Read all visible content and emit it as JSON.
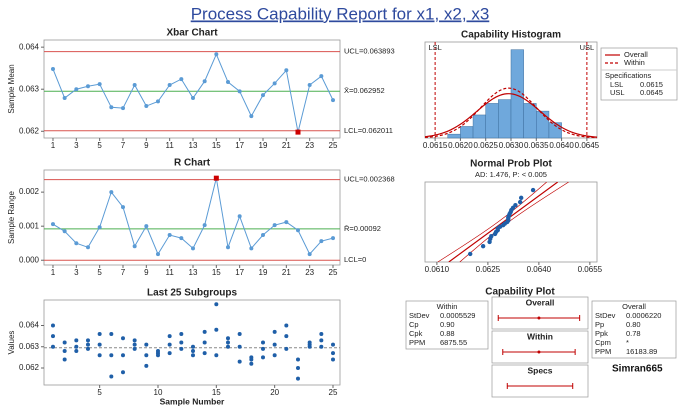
{
  "title": "Process Capability Report for x1, x2, x3",
  "credit": "Simran665",
  "chart_data": [
    {
      "type": "line",
      "title": "Xbar Chart",
      "ylabel": "Sample Mean",
      "x": [
        1,
        2,
        3,
        4,
        5,
        6,
        7,
        8,
        9,
        10,
        11,
        12,
        13,
        14,
        15,
        16,
        17,
        18,
        19,
        20,
        21,
        22,
        23,
        24,
        25
      ],
      "series": [
        {
          "color": "#5b9bd5",
          "values": [
            0.06348,
            0.06279,
            0.063,
            0.06307,
            0.06312,
            0.06257,
            0.06255,
            0.0631,
            0.0626,
            0.06271,
            0.0631,
            0.06324,
            0.06279,
            0.06319,
            0.06383,
            0.06317,
            0.06295,
            0.06236,
            0.06286,
            0.06314,
            0.06345,
            0.06198,
            0.0631,
            0.06331,
            0.06274
          ]
        }
      ],
      "highlight_color": "#cc0000",
      "limits": [
        {
          "value": 0.063893,
          "label": "UCL=0.063893",
          "color": "#d9534f"
        },
        {
          "value": 0.062952,
          "label": "X̄=0.062952",
          "color": "#4caf50"
        },
        {
          "value": 0.062011,
          "label": "LCL=0.062011",
          "color": "#d9534f"
        }
      ],
      "xlim": [
        0.23,
        25.6
      ],
      "xticks": [
        1,
        3,
        5,
        7,
        9,
        11,
        13,
        15,
        17,
        19,
        21,
        23,
        25
      ],
      "ylim": [
        0.06184,
        0.06417
      ],
      "yticks": [
        0.062,
        0.063,
        0.064
      ]
    },
    {
      "type": "line",
      "title": "R Chart",
      "ylabel": "Sample Range",
      "x": [
        1,
        2,
        3,
        4,
        5,
        6,
        7,
        8,
        9,
        10,
        11,
        12,
        13,
        14,
        15,
        16,
        17,
        18,
        19,
        20,
        21,
        22,
        23,
        24,
        25
      ],
      "series": [
        {
          "color": "#5b9bd5",
          "values": [
            0.00106,
            0.00085,
            0.0005,
            0.00038,
            0.00097,
            0.002,
            0.00156,
            0.00041,
            0.001,
            0.00018,
            0.00074,
            0.00065,
            0.00035,
            0.00103,
            0.00241,
            0.00038,
            0.00129,
            0.00035,
            0.00074,
            0.00103,
            0.00112,
            0.00088,
            0.00018,
            0.00056,
            0.00065
          ]
        }
      ],
      "highlight_color": "#cc0000",
      "limits": [
        {
          "value": 0.002368,
          "label": "UCL=0.002368",
          "color": "#d9534f"
        },
        {
          "value": 0.00092,
          "label": "R̄=0.00092",
          "color": "#4caf50"
        },
        {
          "value": 0,
          "label": "LCL=0",
          "color": "#d9534f"
        }
      ],
      "xlim": [
        0.23,
        25.6
      ],
      "xticks": [
        1,
        3,
        5,
        7,
        9,
        11,
        13,
        15,
        17,
        19,
        21,
        23,
        25
      ],
      "ylim": [
        -0.00014,
        0.00265
      ],
      "yticks": [
        {
          "value": 0,
          "label": "0.000"
        },
        0.001,
        0.002
      ]
    },
    {
      "type": "scatter",
      "title": "Last 25 Subgroups",
      "xlabel": "Sample Number",
      "ylabel": "Values",
      "color": "#1f5fa8",
      "x": [
        1,
        1,
        1,
        2,
        2,
        2,
        3,
        3,
        3,
        4,
        4,
        4,
        5,
        5,
        5,
        6,
        6,
        6,
        7,
        7,
        7,
        8,
        8,
        8,
        9,
        9,
        9,
        10,
        10,
        10,
        11,
        11,
        11,
        12,
        12,
        12,
        13,
        13,
        13,
        14,
        14,
        14,
        15,
        15,
        15,
        16,
        16,
        16,
        17,
        17,
        17,
        18,
        18,
        18,
        19,
        19,
        19,
        20,
        20,
        20,
        21,
        21,
        21,
        22,
        22,
        22,
        23,
        23,
        23,
        24,
        24,
        24,
        25,
        25,
        25
      ],
      "y": [
        0.063,
        0.0635,
        0.064,
        0.0624,
        0.0628,
        0.0632,
        0.0628,
        0.063,
        0.0633,
        0.0629,
        0.0631,
        0.0633,
        0.0626,
        0.0631,
        0.0636,
        0.0616,
        0.0626,
        0.0636,
        0.0618,
        0.0626,
        0.0634,
        0.0629,
        0.0631,
        0.0633,
        0.0621,
        0.0626,
        0.0631,
        0.0626,
        0.0627,
        0.0628,
        0.0627,
        0.0631,
        0.0635,
        0.0629,
        0.0632,
        0.0636,
        0.0626,
        0.0628,
        0.063,
        0.0627,
        0.0632,
        0.0637,
        0.0626,
        0.0638,
        0.065,
        0.063,
        0.0632,
        0.0634,
        0.0623,
        0.063,
        0.0636,
        0.0622,
        0.0624,
        0.0625,
        0.0625,
        0.0629,
        0.0632,
        0.0626,
        0.0631,
        0.0637,
        0.0629,
        0.0635,
        0.064,
        0.0615,
        0.062,
        0.0624,
        0.063,
        0.0631,
        0.0632,
        0.063,
        0.0633,
        0.0636,
        0.0624,
        0.0627,
        0.0631
      ],
      "reference_line": 0.062952,
      "xlim": [
        0.23,
        25.6
      ],
      "xticks": [
        5,
        10,
        15,
        20,
        25
      ],
      "ylim": [
        0.0612,
        0.0652
      ],
      "yticks": [
        0.062,
        0.063,
        0.064
      ]
    },
    {
      "type": "histogram",
      "title": "Capability Histogram",
      "color": "#6fa8dc",
      "bins": [
        0.06175,
        0.062,
        0.06225,
        0.0625,
        0.06275,
        0.063,
        0.06325,
        0.0635,
        0.06375,
        0.064
      ],
      "counts": [
        1,
        3,
        6,
        9,
        10,
        23,
        9,
        7,
        4
      ],
      "curves": [
        {
          "name": "Overall",
          "color": "#c00000",
          "mean": 0.062952,
          "sd": 0.000622,
          "dash": false
        },
        {
          "name": "Within",
          "color": "#c00000",
          "mean": 0.062952,
          "sd": 0.0005529,
          "dash": true
        }
      ],
      "spec_lines": [
        {
          "label": "LSL",
          "value": 0.0615,
          "color": "#c00000"
        },
        {
          "label": "USL",
          "value": 0.0645,
          "color": "#c00000"
        }
      ],
      "specifications_title": "Specifications",
      "specifications": [
        {
          "label": "LSL",
          "value": 0.0615
        },
        {
          "label": "USL",
          "value": 0.0645
        }
      ],
      "xlim": [
        0.0613,
        0.0647
      ],
      "xticks": [
        0.0615,
        {
          "value": 0.062,
          "label": "0.0620"
        },
        0.0625,
        {
          "value": 0.063,
          "label": "0.0630"
        },
        0.0635,
        {
          "value": 0.064,
          "label": "0.0640"
        },
        0.0645
      ],
      "ylim": [
        0,
        25
      ]
    },
    {
      "type": "probability",
      "title": "Normal Prob Plot",
      "subtitle": "AD: 1.476, P: < 0.005",
      "color": "#1f5fa8",
      "x": [
        0.06198,
        0.06236,
        0.06255,
        0.06257,
        0.0626,
        0.06271,
        0.06274,
        0.06279,
        0.06279,
        0.06286,
        0.06295,
        0.063,
        0.06307,
        0.0631,
        0.0631,
        0.0631,
        0.06312,
        0.06314,
        0.06317,
        0.06319,
        0.06324,
        0.06331,
        0.06345,
        0.06348,
        0.06383
      ],
      "y": [
        2,
        6,
        10,
        14,
        18,
        22,
        26,
        30,
        34,
        38,
        42,
        46,
        50,
        54,
        58,
        62,
        66,
        70,
        74,
        78,
        82,
        86,
        90,
        94,
        98
      ],
      "fit": {
        "mean": 0.062952,
        "sd": 0.000622,
        "color": "#c00000"
      },
      "xlim": [
        0.06065,
        0.06571
      ],
      "xticks": [
        {
          "value": 0.061,
          "label": "0.0610"
        },
        0.0625,
        {
          "value": 0.064,
          "label": "0.0640"
        },
        0.0655
      ],
      "ylim": [
        0.5,
        99.5
      ]
    },
    {
      "type": "capability",
      "title": "Capability Plot",
      "within": {
        "title": "Within",
        "rows": [
          [
            "StDev",
            "0.0005529"
          ],
          [
            "Cp",
            "0.90"
          ],
          [
            "Cpk",
            "0.88"
          ],
          [
            "PPM",
            "6875.55"
          ]
        ]
      },
      "overall": {
        "title": "Overall",
        "rows": [
          [
            "StDev",
            "0.0006220"
          ],
          [
            "Pp",
            "0.80"
          ],
          [
            "Ppk",
            "0.78"
          ],
          [
            "Cpm",
            "*"
          ],
          [
            "PPM",
            "16183.89"
          ]
        ]
      },
      "intervals": [
        {
          "label": "Overall",
          "mean": 0.062952,
          "sd": 0.000622
        },
        {
          "label": "Within",
          "mean": 0.062952,
          "sd": 0.0005529
        },
        {
          "label": "Specs",
          "lower": 0.0615,
          "upper": 0.0645
        }
      ],
      "color": "#c00000",
      "xlim": [
        0.0608,
        0.0652
      ]
    }
  ]
}
